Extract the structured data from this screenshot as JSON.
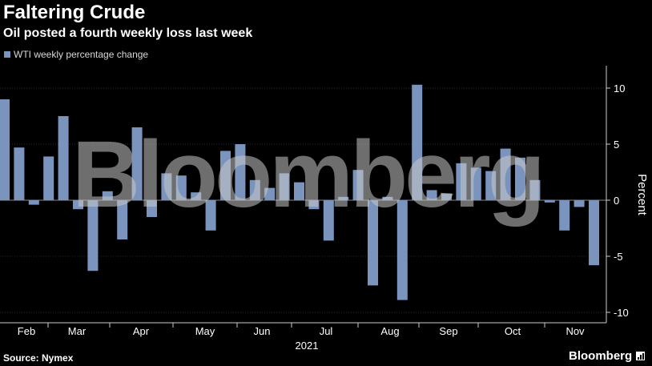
{
  "header": {
    "title": "Faltering Crude",
    "subtitle": "Oil posted a fourth weekly loss last week"
  },
  "footer": {
    "source": "Source: Nymex",
    "brand": "Bloomberg"
  },
  "watermark": "Bloomberg",
  "colors": {
    "bar": "#7b94bd",
    "axis": "#cccccc",
    "grid": "#2e2e2e",
    "background": "#000000"
  },
  "chart_data": {
    "type": "bar",
    "series": [
      {
        "name": "WTI weekly percentage change",
        "values": [
          9.0,
          4.7,
          -0.4,
          3.9,
          7.5,
          -0.8,
          -6.3,
          0.8,
          -3.5,
          6.5,
          -1.5,
          2.4,
          2.2,
          0.7,
          -2.7,
          4.4,
          5.0,
          1.8,
          1.1,
          2.4,
          1.6,
          -0.8,
          -3.6,
          0.3,
          2.7,
          -7.6,
          0.3,
          -8.9,
          10.3,
          0.9,
          0.6,
          3.3,
          2.9,
          2.6,
          4.6,
          3.8,
          1.8,
          -0.2,
          -2.7,
          -0.6,
          -5.8
        ]
      }
    ],
    "x_labels": [
      "Feb",
      "Mar",
      "Apr",
      "May",
      "Jun",
      "Jul",
      "Aug",
      "Sep",
      "Oct",
      "Nov"
    ],
    "x_year_label": "2021",
    "ylabel": "Percent",
    "y_ticks": [
      10,
      5,
      0,
      -5,
      -10
    ],
    "ylim": [
      -11,
      12
    ],
    "grid": true,
    "legend": "top-left"
  }
}
